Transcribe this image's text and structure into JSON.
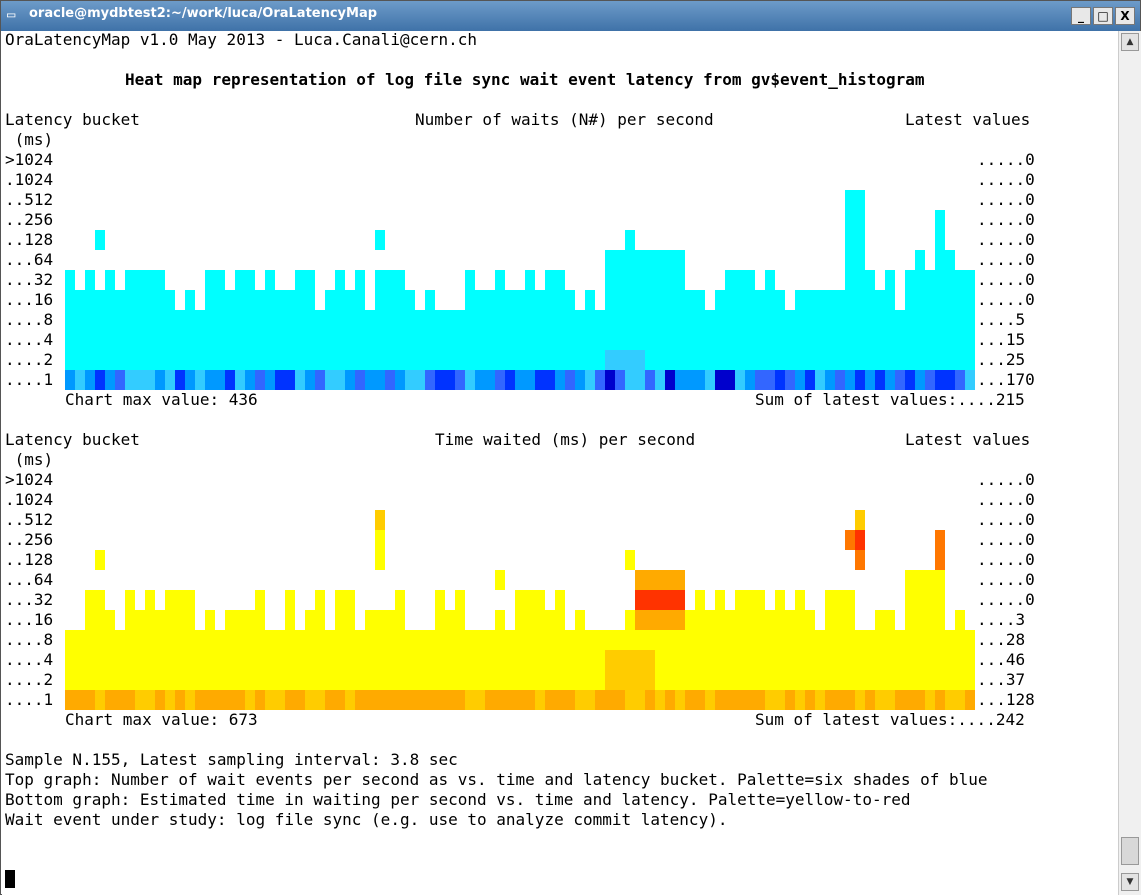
{
  "window": {
    "title": "oracle@mydbtest2:~/work/luca/OraLatencyMap",
    "icon": "terminal-icon",
    "minimize_glyph": "_",
    "maximize_glyph": "□",
    "close_glyph": "X"
  },
  "terminal": {
    "header": "OraLatencyMap v1.0 May 2013 - Luca.Canali@cern.ch",
    "heading": "Heat map representation of log file sync wait event latency from gv$event_histogram",
    "bucket_labels": [
      ">1024",
      ".1024",
      "..512",
      "..256",
      "..128",
      "...64",
      "...32",
      "...16",
      "....8",
      "....4",
      "....2",
      "....1"
    ],
    "top": {
      "label_bucket": "Latency bucket",
      "label_units": " (ms)",
      "title": "Number of waits (N#) per second",
      "label_latest": "Latest values",
      "latest_values": [
        ".....0",
        ".....0",
        ".....0",
        ".....0",
        ".....0",
        ".....0",
        ".....0",
        ".....0",
        "....5",
        "...15",
        "...25",
        "...170"
      ],
      "chart_max": "Chart max value: 436",
      "sum_latest": "Sum of latest values:....215",
      "palette": [
        "#00ffff",
        "#33ccff",
        "#0099ff",
        "#3366ff",
        "#0033ff",
        "#0000cc"
      ]
    },
    "bottom": {
      "label_bucket": "Latency bucket",
      "label_units": " (ms)",
      "title": "Time waited (ms) per second",
      "label_latest": "Latest values",
      "latest_values": [
        ".....0",
        ".....0",
        ".....0",
        ".....0",
        ".....0",
        ".....0",
        ".....0",
        "....3",
        "...28",
        "...46",
        "...37",
        "...128"
      ],
      "chart_max": "Chart max value: 673",
      "sum_latest": "Sum of latest values:....242",
      "palette": [
        "#ffff00",
        "#ffcc00",
        "#ffaa00",
        "#ff7700",
        "#ff3300",
        "#dd0000"
      ]
    },
    "footer": [
      "Sample N.155, Latest sampling interval: 3.8 sec",
      "Top graph: Number of wait events per second as vs. time and latency bucket. Palette=six shades of blue",
      "Bottom graph: Estimated time in waiting per second vs. time and latency. Palette=yellow-to-red",
      "Wait event under study: log file sync (e.g. use to analyze commit latency)."
    ]
  },
  "heatmaps": {
    "top": {
      "rows": [
        "..........................................................................................................",
        "..........................................................................................................",
        "..........................................................................................................................................................................................",
        ".........................................................................................................",
        "...1..........................1........................1.......................................................",
        "...........................................................111...........................................1111...........................",
        "1111.1.11....11.11..1....1....1.1..1.....................1.1111111111..................................",
        "11111111111.1111111111111111111111111...1111111111111111111111111111111111111111111111111111111111111111111111",
        "1111111111111111111111111111111111111111111111111111111111111111111111111111111111111111111111111111111111111111111",
        "1111111111111111111111111111111111111111111111111111111111112221111111111111111111111111111111111111",
        "1111111111111111111111111111111111111111111111111111122221111111111111112111111111111111111111111",
        "34433455433435443353444333323332222222222344444444434334354534444446665466554445443333344333233333"
      ]
    },
    "bottom": {
      "rows": [
        "",
        "",
        "",
        "",
        "",
        "",
        "",
        "",
        "",
        "",
        "",
        ""
      ]
    }
  }
}
